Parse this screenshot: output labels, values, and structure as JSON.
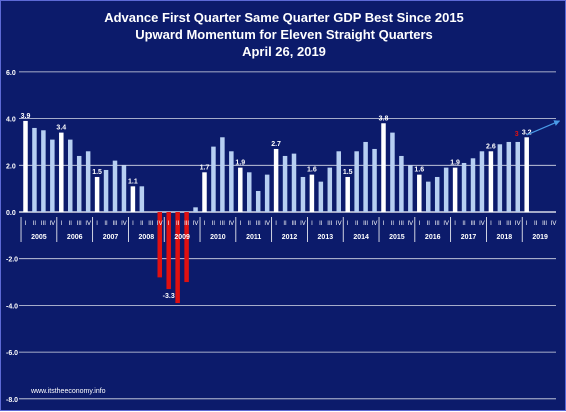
{
  "title_lines": [
    "Advance First Quarter Same Quarter GDP Best Since 2015",
    "Upward Momentum for Eleven Straight Quarters",
    "April 26, 2019"
  ],
  "source": "www.itstheeconomy.info",
  "colors": {
    "background": "#0c1b6b",
    "bar_default": "#b7cff2",
    "bar_q1": "#ffffff",
    "bar_negative": "#e01010",
    "text": "#ffffff",
    "trend_arrow": "#4a9be8"
  },
  "chart_data": {
    "type": "bar",
    "ylim": [
      -8,
      6
    ],
    "y_ticks": [
      "6.0",
      "4.0",
      "2.0",
      "0.0",
      "-2.0",
      "-4.0",
      "-6.0",
      "-8.0"
    ],
    "y_tick_values": [
      6,
      4,
      2,
      0,
      -2,
      -4,
      -6,
      -8
    ],
    "grid": true,
    "quarter_labels": [
      "I",
      "II",
      "III",
      "IV"
    ],
    "years": [
      "2005",
      "2006",
      "2007",
      "2008",
      "2009",
      "2010",
      "2011",
      "2012",
      "2013",
      "2014",
      "2015",
      "2016",
      "2017",
      "2018",
      "2019"
    ],
    "quarters": [
      {
        "year": "2005",
        "values": [
          3.9,
          3.6,
          3.5,
          3.1
        ]
      },
      {
        "year": "2006",
        "values": [
          3.4,
          3.1,
          2.4,
          2.6
        ]
      },
      {
        "year": "2007",
        "values": [
          1.5,
          1.8,
          2.2,
          2.0
        ]
      },
      {
        "year": "2008",
        "values": [
          1.1,
          1.1,
          0.0,
          -2.8
        ]
      },
      {
        "year": "2009",
        "values": [
          -3.3,
          -3.9,
          -3.0,
          0.2
        ]
      },
      {
        "year": "2010",
        "values": [
          1.7,
          2.8,
          3.2,
          2.6
        ]
      },
      {
        "year": "2011",
        "values": [
          1.9,
          1.7,
          0.9,
          1.6
        ]
      },
      {
        "year": "2012",
        "values": [
          2.7,
          2.4,
          2.5,
          1.5
        ]
      },
      {
        "year": "2013",
        "values": [
          1.6,
          1.3,
          1.9,
          2.6
        ]
      },
      {
        "year": "2014",
        "values": [
          1.5,
          2.6,
          3.0,
          2.7
        ]
      },
      {
        "year": "2015",
        "values": [
          3.8,
          3.4,
          2.4,
          2.0
        ]
      },
      {
        "year": "2016",
        "values": [
          1.6,
          1.3,
          1.5,
          1.9
        ]
      },
      {
        "year": "2017",
        "values": [
          1.9,
          2.1,
          2.3,
          2.6
        ]
      },
      {
        "year": "2018",
        "values": [
          2.6,
          2.9,
          3.0,
          3.0
        ]
      },
      {
        "year": "2019",
        "values": [
          3.2,
          null,
          null,
          null
        ]
      }
    ],
    "data_labels": [
      {
        "year": "2005",
        "quarter": 0,
        "text": "3.9"
      },
      {
        "year": "2006",
        "quarter": 0,
        "text": "3.4"
      },
      {
        "year": "2007",
        "quarter": 0,
        "text": "1.5"
      },
      {
        "year": "2008",
        "quarter": 0,
        "text": "1.1"
      },
      {
        "year": "2009",
        "quarter": 0,
        "text": "-3.3"
      },
      {
        "year": "2010",
        "quarter": 0,
        "text": "1.7"
      },
      {
        "year": "2011",
        "quarter": 0,
        "text": "1.9"
      },
      {
        "year": "2012",
        "quarter": 0,
        "text": "2.7"
      },
      {
        "year": "2013",
        "quarter": 0,
        "text": "1.6"
      },
      {
        "year": "2014",
        "quarter": 0,
        "text": "1.5"
      },
      {
        "year": "2015",
        "quarter": 0,
        "text": "3.8"
      },
      {
        "year": "2016",
        "quarter": 0,
        "text": "1.6"
      },
      {
        "year": "2017",
        "quarter": 0,
        "text": "1.9"
      },
      {
        "year": "2018",
        "quarter": 0,
        "text": "2.6"
      },
      {
        "year": "2019",
        "quarter": 0,
        "text": "3.2"
      }
    ],
    "highlight_label": {
      "year": "2018",
      "quarter": 3,
      "text": "3"
    },
    "trend_arrow": {
      "from": {
        "year": "2019",
        "quarter": 0,
        "value": 3.3
      },
      "to": {
        "year": "2019",
        "quarter": 3,
        "value": 3.9
      }
    }
  }
}
